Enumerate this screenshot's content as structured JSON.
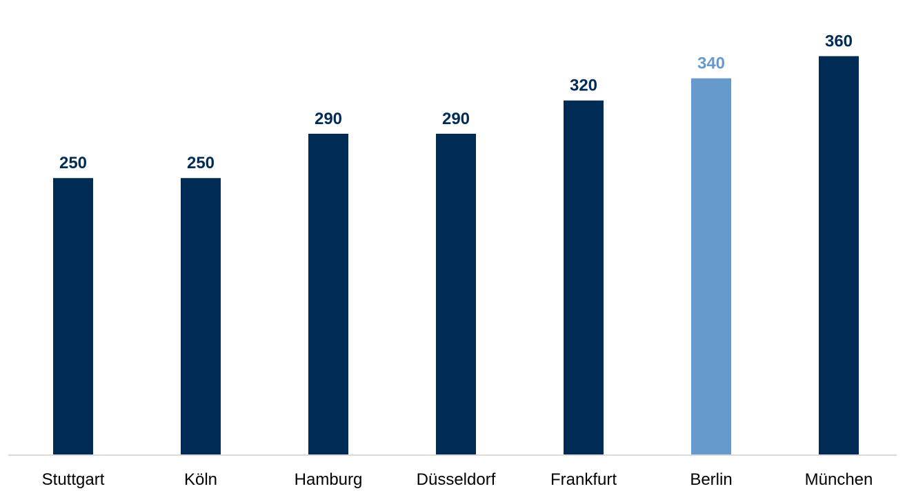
{
  "chart_data": {
    "type": "bar",
    "categories": [
      "Stuttgart",
      "Köln",
      "Hamburg",
      "Düsseldorf",
      "Frankfurt",
      "Berlin",
      "München"
    ],
    "values": [
      250,
      250,
      290,
      290,
      320,
      340,
      360
    ],
    "title": "",
    "xlabel": "",
    "ylabel": "",
    "ylim": [
      0,
      370
    ],
    "grid": false,
    "highlight_category": "Berlin",
    "colors": {
      "bar": "#002b55",
      "highlight": "#6699cc",
      "axis": "#d9d9d9"
    }
  }
}
